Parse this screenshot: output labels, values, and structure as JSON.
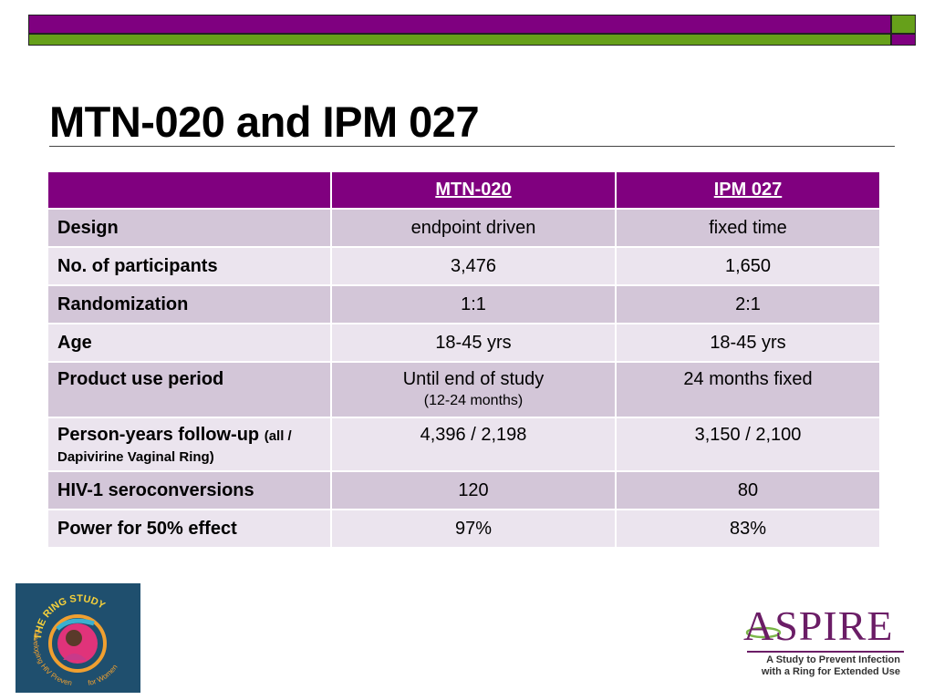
{
  "title": "MTN-020 and IPM 027",
  "table": {
    "headers": [
      "",
      "MTN-020",
      "IPM 027"
    ],
    "rows": [
      {
        "label": "Design",
        "mtn": "endpoint driven",
        "ipm": "fixed time"
      },
      {
        "label": "No. of participants",
        "mtn": "3,476",
        "ipm": "1,650"
      },
      {
        "label": "Randomization",
        "mtn": "1:1",
        "ipm": "2:1"
      },
      {
        "label": "Age",
        "mtn": "18-45 yrs",
        "ipm": "18-45 yrs"
      },
      {
        "label": "Product use period",
        "mtn": "Until end of study",
        "mtn_sub": "(12-24 months)",
        "ipm": "24 months fixed"
      },
      {
        "label": "Person-years follow-up",
        "label_small": "(all / Dapivirine Vaginal Ring)",
        "mtn": "4,396 / 2,198",
        "ipm": "3,150 / 2,100"
      },
      {
        "label": "HIV-1 seroconversions",
        "mtn": "120",
        "ipm": "80"
      },
      {
        "label": "Power for 50% effect",
        "mtn": "97%",
        "ipm": "83%"
      }
    ]
  },
  "logos": {
    "ring_study": {
      "text_top": "THE RING STUDY",
      "text_left": "Developing HIV Prevention",
      "text_right": "for Women"
    },
    "aspire": {
      "name": "ASPIRE",
      "tagline_1": "A Study to Prevent Infection",
      "tagline_2": "with a Ring for Extended Use"
    }
  },
  "colors": {
    "purple": "#7f0080",
    "green": "#66a01a",
    "row_dark": "#d3c6d8",
    "row_light": "#ebe4ee"
  }
}
